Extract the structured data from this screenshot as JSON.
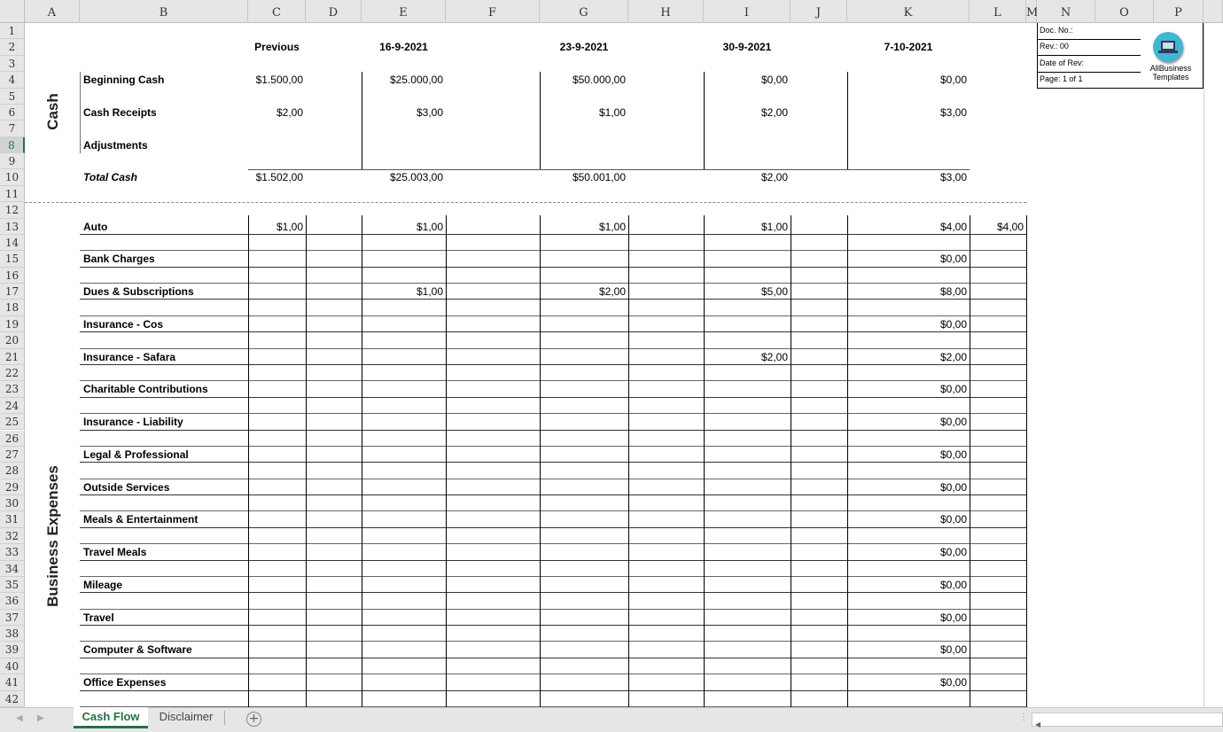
{
  "columns": [
    "A",
    "B",
    "C",
    "D",
    "E",
    "F",
    "G",
    "H",
    "I",
    "J",
    "K",
    "L",
    "M",
    "N",
    "O",
    "P"
  ],
  "row_count": 42,
  "selected_row": 8,
  "cash_section": {
    "title": "Cash",
    "headers": [
      "Previous",
      "16-9-2021",
      "23-9-2021",
      "30-9-2021",
      "7-10-2021"
    ],
    "rows": [
      {
        "row": 4,
        "label": "Beginning Cash",
        "values": [
          "$1.500,00",
          "$25.000,00",
          "$50.000,00",
          "$0,00",
          "$0,00"
        ]
      },
      {
        "row": 6,
        "label": "Cash Receipts",
        "values": [
          "$2,00",
          "$3,00",
          "$1,00",
          "$2,00",
          "$3,00"
        ]
      },
      {
        "row": 8,
        "label": "Adjustments",
        "values": [
          "",
          "",
          "",
          "",
          ""
        ]
      },
      {
        "row": 10,
        "label": "Total Cash",
        "italic": true,
        "values": [
          "$1.502,00",
          "$25.003,00",
          "$50.001,00",
          "$2,00",
          "$3,00"
        ]
      }
    ]
  },
  "expenses_section": {
    "title": "Business Expenses",
    "rows": [
      {
        "row": 13,
        "label": "Auto",
        "values": [
          "$1,00",
          "$1,00",
          "$1,00",
          "$1,00",
          "$4,00",
          "$4,00"
        ]
      },
      {
        "row": 15,
        "label": "Bank Charges",
        "values": [
          "",
          "",
          "",
          "",
          "$0,00",
          ""
        ]
      },
      {
        "row": 17,
        "label": "Dues & Subscriptions",
        "values": [
          "",
          "$1,00",
          "$2,00",
          "$5,00",
          "$8,00",
          ""
        ]
      },
      {
        "row": 19,
        "label": "Insurance - Cos",
        "values": [
          "",
          "",
          "",
          "",
          "$0,00",
          ""
        ]
      },
      {
        "row": 21,
        "label": "Insurance - Safara",
        "values": [
          "",
          "",
          "",
          "$2,00",
          "$2,00",
          ""
        ]
      },
      {
        "row": 23,
        "label": "Charitable Contributions",
        "values": [
          "",
          "",
          "",
          "",
          "$0,00",
          ""
        ]
      },
      {
        "row": 25,
        "label": "Insurance - Liability",
        "values": [
          "",
          "",
          "",
          "",
          "$0,00",
          ""
        ]
      },
      {
        "row": 27,
        "label": "Legal & Professional",
        "values": [
          "",
          "",
          "",
          "",
          "$0,00",
          ""
        ]
      },
      {
        "row": 29,
        "label": "Outside Services",
        "values": [
          "",
          "",
          "",
          "",
          "$0,00",
          ""
        ]
      },
      {
        "row": 31,
        "label": "Meals & Entertainment",
        "values": [
          "",
          "",
          "",
          "",
          "$0,00",
          ""
        ]
      },
      {
        "row": 33,
        "label": "Travel Meals",
        "values": [
          "",
          "",
          "",
          "",
          "$0,00",
          ""
        ]
      },
      {
        "row": 35,
        "label": "Mileage",
        "values": [
          "",
          "",
          "",
          "",
          "$0,00",
          ""
        ]
      },
      {
        "row": 37,
        "label": "Travel",
        "values": [
          "",
          "",
          "",
          "",
          "$0,00",
          ""
        ]
      },
      {
        "row": 39,
        "label": "Computer & Software",
        "values": [
          "",
          "",
          "",
          "",
          "$0,00",
          ""
        ]
      },
      {
        "row": 41,
        "label": "Office Expenses",
        "values": [
          "",
          "",
          "",
          "",
          "$0,00",
          ""
        ]
      }
    ]
  },
  "doc_box": {
    "doc_no": "Doc. No.:",
    "rev": "Rev.: 00",
    "date_of_rev": "Date of Rev:",
    "page": "Page: 1 of 1",
    "logo_text_1": "AllBusiness",
    "logo_text_2": "Templates",
    "logo_color": "#3fb6d3"
  },
  "sheet_tabs": [
    {
      "label": "Cash Flow",
      "active": true
    },
    {
      "label": "Disclaimer",
      "active": false
    }
  ],
  "accent_color": "#217346"
}
